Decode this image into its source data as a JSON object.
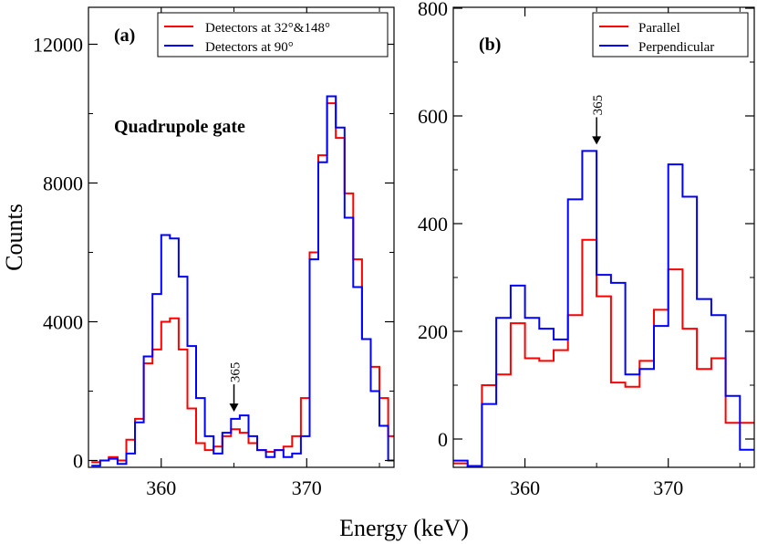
{
  "chart_data": [
    {
      "type": "line",
      "step": true,
      "panel_label": "(a)",
      "annotation": "Quadrupole gate",
      "xlabel": "Energy (keV)",
      "ylabel": "Counts",
      "xlim": [
        355,
        376
      ],
      "ylim": [
        -200,
        13000
      ],
      "xticks": [
        360,
        370
      ],
      "yticks": [
        0,
        4000,
        8000,
        12000
      ],
      "legend_position": "top-right",
      "arrow": {
        "label": "365",
        "x": 365,
        "y": 1300
      },
      "x": [
        355.5,
        356.1,
        356.7,
        357.3,
        357.9,
        358.5,
        359.1,
        359.7,
        360.3,
        360.9,
        361.5,
        362.1,
        362.7,
        363.3,
        363.9,
        364.5,
        365.1,
        365.7,
        366.3,
        366.9,
        367.5,
        368.1,
        368.7,
        369.3,
        369.9,
        370.5,
        371.1,
        371.7,
        372.3,
        372.9,
        373.5,
        374.1,
        374.7,
        375.3,
        375.9
      ],
      "series": [
        {
          "name": "Detectors at 32°&148°",
          "color": "#ff0000",
          "values": [
            -50,
            0,
            100,
            0,
            600,
            1200,
            2800,
            3200,
            4000,
            4100,
            3200,
            1500,
            500,
            300,
            400,
            700,
            900,
            800,
            500,
            300,
            250,
            300,
            400,
            700,
            1800,
            6000,
            8800,
            10300,
            9300,
            7700,
            5800,
            3500,
            2700,
            1800,
            700
          ]
        },
        {
          "name": "Detectors at 90°",
          "color": "#0000ff",
          "values": [
            -150,
            0,
            50,
            -100,
            200,
            1100,
            3000,
            4800,
            6500,
            6400,
            5300,
            3300,
            1800,
            700,
            200,
            800,
            1200,
            1300,
            700,
            300,
            100,
            300,
            100,
            200,
            700,
            5800,
            8600,
            10500,
            9600,
            7000,
            5000,
            3500,
            2000,
            1000,
            0
          ]
        }
      ]
    },
    {
      "type": "line",
      "step": true,
      "panel_label": "(b)",
      "xlabel": "Energy (keV)",
      "xlim": [
        355,
        376
      ],
      "ylim": [
        -70,
        800
      ],
      "xticks": [
        360,
        370
      ],
      "yticks": [
        0,
        200,
        400,
        600,
        800
      ],
      "legend_position": "top-right",
      "arrow": {
        "label": "365",
        "x": 365,
        "y": 540
      },
      "x": [
        355.5,
        356.5,
        357.5,
        358.5,
        359.5,
        360.5,
        361.5,
        362.5,
        363.5,
        364.5,
        365.5,
        366.5,
        367.5,
        368.5,
        369.5,
        370.5,
        371.5,
        372.5,
        373.5,
        374.5,
        375.5
      ],
      "series": [
        {
          "name": "Parallel",
          "color": "#ff0000",
          "values": [
            -45,
            -50,
            100,
            120,
            215,
            150,
            145,
            165,
            230,
            370,
            265,
            105,
            97,
            145,
            240,
            315,
            205,
            130,
            150,
            30,
            30
          ]
        },
        {
          "name": "Perpendicular",
          "color": "#0000ff",
          "values": [
            -40,
            -50,
            65,
            225,
            285,
            225,
            205,
            185,
            445,
            535,
            305,
            290,
            120,
            130,
            210,
            510,
            450,
            260,
            230,
            80,
            -20
          ]
        }
      ]
    }
  ]
}
